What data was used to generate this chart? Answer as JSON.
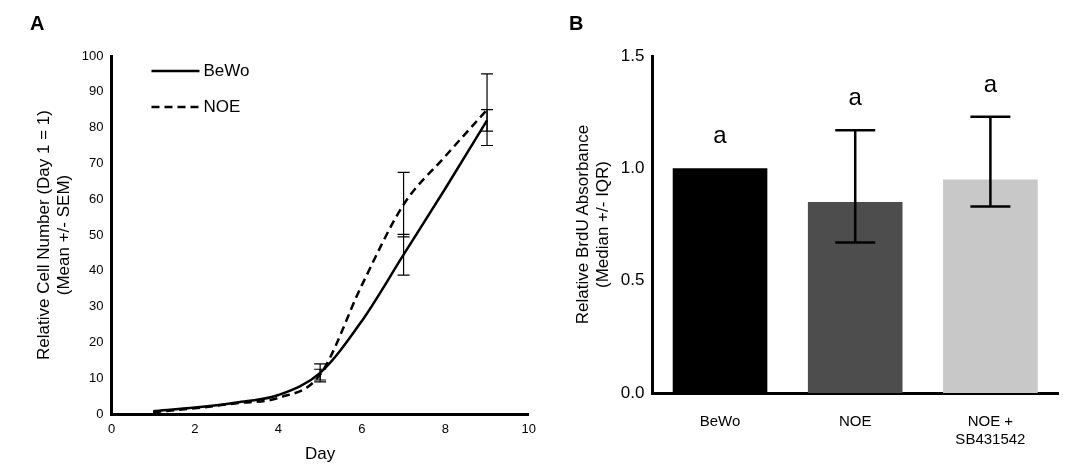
{
  "chart_data": [
    {
      "type": "line",
      "title": "A",
      "xlabel": "Day",
      "ylabel": "Relative Cell Number (Day 1 = 1)\n(Mean +/- SEM)",
      "x": [
        1,
        2,
        3,
        4,
        5,
        6,
        7,
        8,
        9
      ],
      "series": [
        {
          "name": "BeWo",
          "color": "#000000",
          "line_style": "solid",
          "values": [
            0.8,
            1.8,
            3.2,
            5.3,
            11.5,
            26,
            44.5,
            63,
            82
          ],
          "errors": [
            null,
            null,
            null,
            null,
            2.5,
            null,
            5.7,
            null,
            3
          ]
        },
        {
          "name": "NOE",
          "color": "#000000",
          "line_style": "dashed",
          "values": [
            0.5,
            1.6,
            3,
            4.5,
            11,
            36,
            58.5,
            72,
            85
          ],
          "errors": [
            null,
            null,
            null,
            null,
            1.5,
            null,
            9,
            null,
            10
          ]
        }
      ],
      "xlim": [
        0,
        10
      ],
      "xticks": [
        0,
        2,
        4,
        6,
        8,
        10
      ],
      "ylim": [
        0,
        100
      ],
      "yticks": [
        0,
        10,
        20,
        30,
        40,
        50,
        60,
        70,
        80,
        90,
        100
      ],
      "grid": false,
      "legend": "top left",
      "marker": "none"
    },
    {
      "type": "bar",
      "title": "B",
      "ylabel": "Relative BrdU Absorbance\n(Median +/- IQR)",
      "categories": [
        "BeWo",
        "NOE",
        "NOE + SB431542"
      ],
      "values": [
        1.0,
        0.85,
        0.95
      ],
      "colors": [
        "#000000",
        "#4d4d4d",
        "#c8c8c8"
      ],
      "errors": [
        null,
        [
          0.67,
          1.17
        ],
        [
          0.83,
          1.23
        ]
      ],
      "ylim": [
        0,
        1.5
      ],
      "yticks": [
        {
          "value": 0,
          "label": "0.0"
        },
        {
          "value": 0.5,
          "label": "0.5"
        },
        {
          "value": 1,
          "label": "1.0"
        },
        {
          "value": 1.5,
          "label": "1.5"
        }
      ],
      "annotations": [
        "a",
        "a",
        "a"
      ],
      "grid": false,
      "legend": false
    }
  ]
}
